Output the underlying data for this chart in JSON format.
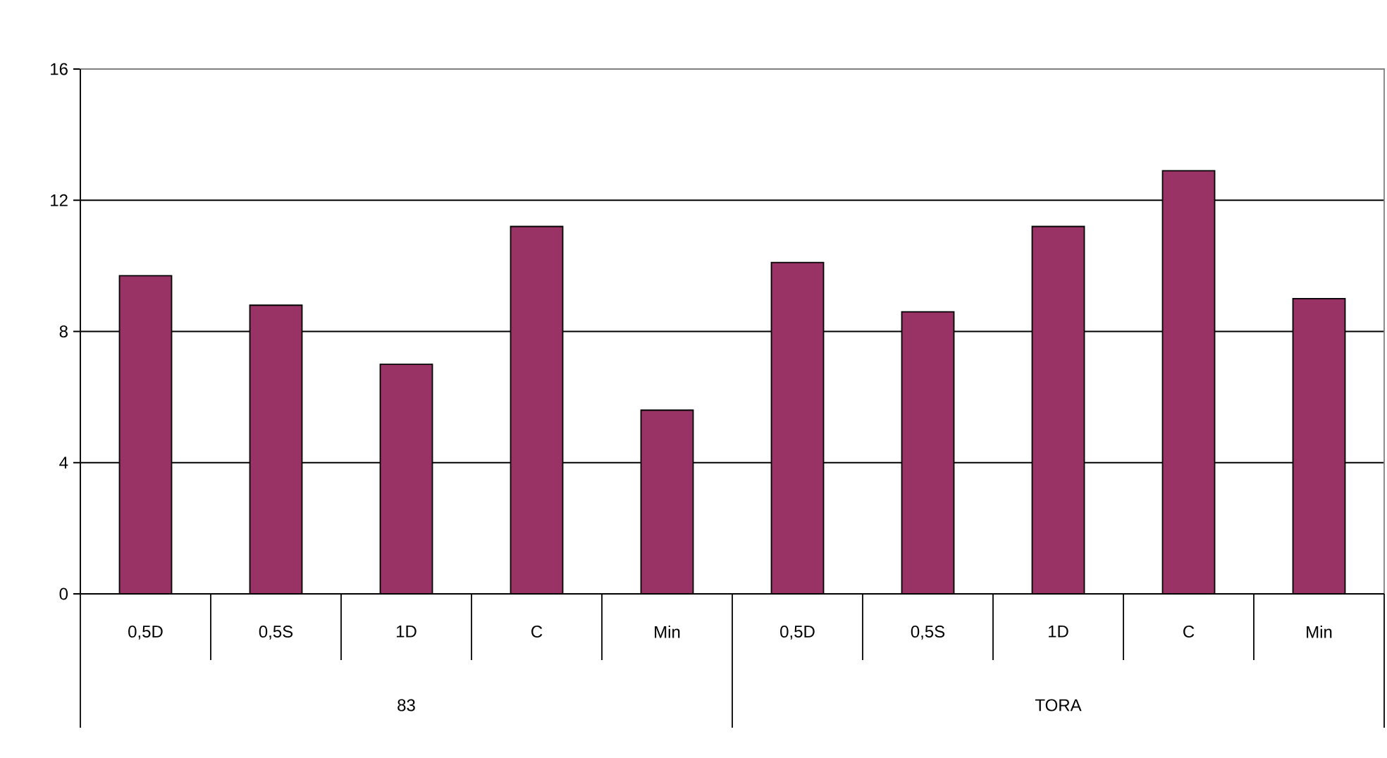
{
  "chart_data": {
    "type": "bar",
    "categories": [
      "0,5D",
      "0,5S",
      "1D",
      "C",
      "Min",
      "0,5D",
      "0,5S",
      "1D",
      "C",
      "Min"
    ],
    "values": [
      9.7,
      8.8,
      7.0,
      11.2,
      5.6,
      10.1,
      8.6,
      11.2,
      12.9,
      9.0
    ],
    "color": "#993366",
    "ylim": [
      0,
      16
    ],
    "yticks": [
      0,
      4,
      8,
      12,
      16
    ],
    "grid": "y",
    "annotations": [
      "83",
      "TORA"
    ]
  }
}
